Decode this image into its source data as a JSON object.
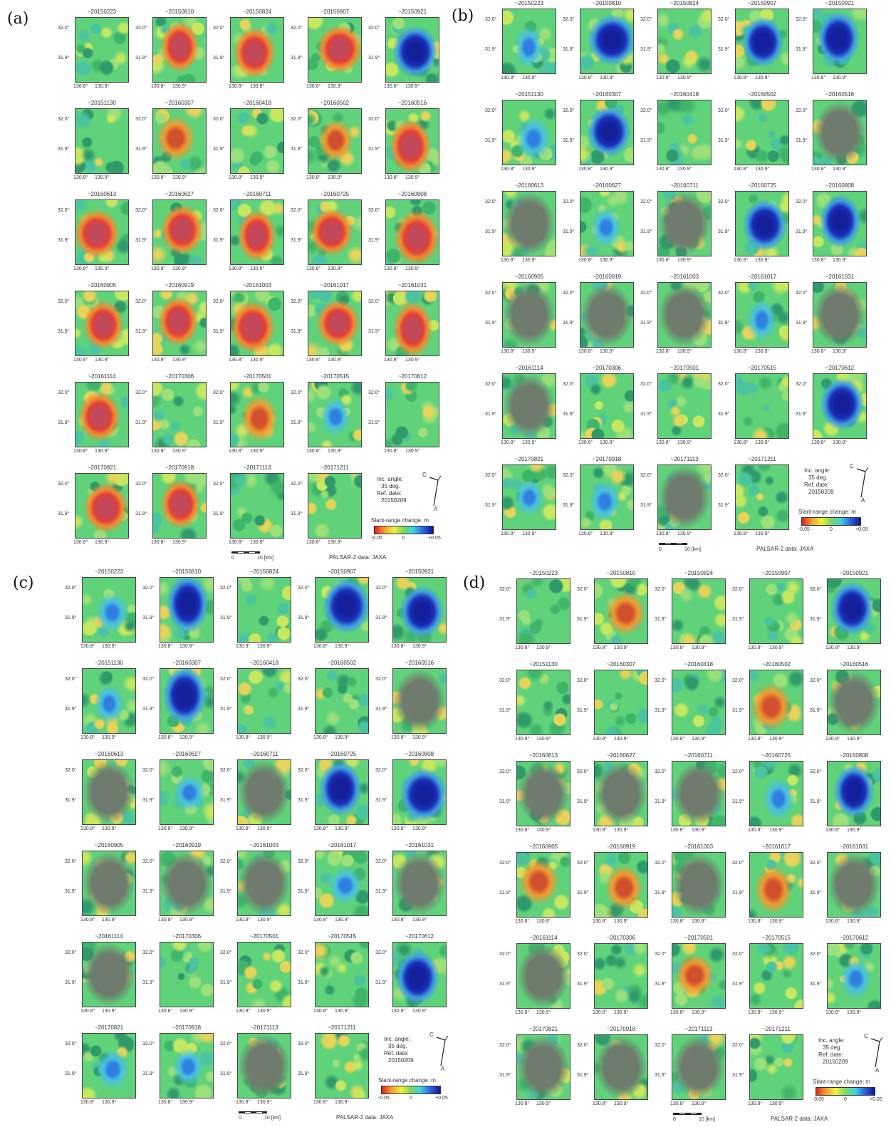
{
  "panels": [
    {
      "label": "(a)",
      "dates": [
        "~20150223",
        "~20150810",
        "~20150824",
        "~20150907",
        "~20150921",
        "~20151130",
        "~20160307",
        "~20160418",
        "~20160502",
        "~20160516",
        "~20160613",
        "~20160627",
        "~20160711",
        "~20160725",
        "~20160808",
        "~20160905",
        "~20160919",
        "~20161003",
        "~20161017",
        "~20161031",
        "~20161114",
        "~20170306",
        "~20170501",
        "~20170515",
        "~20170612",
        "~20170821",
        "~20170918",
        "~20171113",
        "~20171211"
      ],
      "dominant_signal": "red"
    },
    {
      "label": "(b)",
      "dates": [
        "~20150223",
        "~20150810",
        "~20150824",
        "~20150907",
        "~20150921",
        "~20151130",
        "~20160307",
        "~20160418",
        "~20160502",
        "~20160516",
        "~20160613",
        "~20160627",
        "~20160711",
        "~20160725",
        "~20160808",
        "~20160905",
        "~20160919",
        "~20161003",
        "~20161017",
        "~20161031",
        "~20161114",
        "~20170306",
        "~20170501",
        "~20170515",
        "~20170612",
        "~20170821",
        "~20170918",
        "~20171113",
        "~20171211"
      ],
      "dominant_signal": "blue"
    },
    {
      "label": "(c)",
      "dates": [
        "~20150223",
        "~20150810",
        "~20150824",
        "~20150907",
        "~20150921",
        "~20151130",
        "~20160307",
        "~20160418",
        "~20160502",
        "~20160516",
        "~20160613",
        "~20160627",
        "~20160711",
        "~20160725",
        "~20160808",
        "~20160905",
        "~20160919",
        "~20161003",
        "~20161017",
        "~20161031",
        "~20161114",
        "~20170306",
        "~20170501",
        "~20170515",
        "~20170612",
        "~20170821",
        "~20170918",
        "~20171113",
        "~20171211"
      ],
      "dominant_signal": "blue"
    },
    {
      "label": "(d)",
      "dates": [
        "~20150223",
        "~20150810",
        "~20150824",
        "~20150907",
        "~20150921",
        "~20151130",
        "~20160307",
        "~20160418",
        "~20160502",
        "~20160516",
        "~20160613",
        "~20160627",
        "~20160711",
        "~20160725",
        "~20160808",
        "~20160905",
        "~20160919",
        "~20161003",
        "~20161017",
        "~20161031",
        "~20161114",
        "~20170306",
        "~20170501",
        "~20170515",
        "~20170612",
        "~20170821",
        "~20170918",
        "~20171113",
        "~20171211"
      ],
      "dominant_signal": "mixed"
    }
  ],
  "axis": {
    "lat_top": "32.0°",
    "lat_bottom": "31.9°",
    "lon_left": "130.8°",
    "lon_right": "130.9°"
  },
  "legend": {
    "inc_angle_label": "Inc. angle:",
    "inc_angle_value": "35 deg.",
    "ref_date_label": "Ref. date:",
    "ref_date_value": "20150209",
    "colorbar_title": "Slant-range change: m",
    "colorbar_min": "-0.05",
    "colorbar_mid": "0",
    "colorbar_max": "+0.05",
    "compass_c": "C",
    "compass_a": "A"
  },
  "scale_bar": {
    "zero": "0",
    "ten": "10 [km]"
  },
  "credit": "PALSAR-2 data: JAXA",
  "colors": {
    "background_green": "#5fd27a",
    "red": "#e0403a",
    "blue": "#1a2fb8",
    "gray": "#7d8a7a"
  }
}
